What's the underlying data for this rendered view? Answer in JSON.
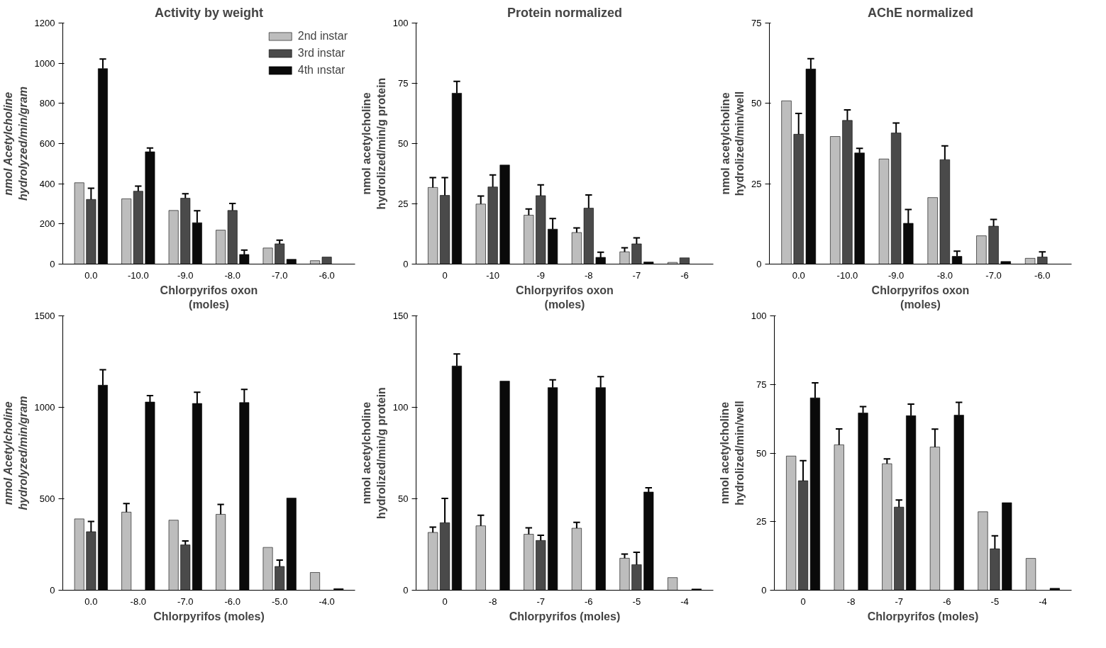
{
  "chart_data": [
    {
      "type": "bar",
      "title": "Activity by weight",
      "xlabel": "Chlorpyrifos oxon\n(moles)",
      "ylabel": "nmol Acetylcholine\nhydrolyzed/min/gram",
      "categories": [
        "0.0",
        "-10.0",
        "-9.0",
        "-8.0",
        "-7.0",
        "-6.0"
      ],
      "ylim": [
        0,
        1200
      ],
      "yticks": [
        0,
        200,
        400,
        600,
        800,
        1000,
        1200
      ],
      "legend": "top right",
      "grid": false,
      "series": [
        {
          "name": "2nd instar",
          "color": "#bdbdbd",
          "values": [
            405,
            325,
            267,
            169,
            80,
            17
          ]
        },
        {
          "name": "3rd instar",
          "color": "#4a4a4a",
          "values": [
            322,
            363,
            328,
            267,
            101,
            35
          ],
          "errors": [
            [
              322,
              378
            ],
            [
              363,
              388
            ],
            [
              328,
              350
            ],
            [
              267,
              302
            ],
            [
              101,
              119
            ],
            null
          ]
        },
        {
          "name": "4th ınstar",
          "color": "#0a0a0a",
          "values": [
            973,
            559,
            206,
            48,
            24,
            null
          ],
          "errors": [
            [
              973,
              1021
            ],
            [
              559,
              578
            ],
            [
              206,
              266
            ],
            [
              48,
              70
            ],
            null,
            null
          ]
        }
      ]
    },
    {
      "type": "bar",
      "title": "Protein normalized",
      "xlabel": "Chlorpyrifos oxon\n(moles)",
      "ylabel": "nmol acetylcholine\nhydrolized/min/g protein",
      "categories": [
        "0",
        "-10",
        "-9",
        "-8",
        "-7",
        "-6"
      ],
      "ylim": [
        0,
        100
      ],
      "yticks": [
        0,
        25,
        50,
        75,
        100
      ],
      "grid": false,
      "series": [
        {
          "color": "#bdbdbd",
          "values": [
            31.8,
            24.9,
            20.3,
            13.1,
            5.1,
            0.7
          ],
          "errors": [
            [
              31.8,
              35.9
            ],
            [
              24.9,
              28.2
            ],
            [
              20.3,
              22.9
            ],
            [
              13.1,
              15
            ],
            [
              5.1,
              6.8
            ],
            null
          ]
        },
        {
          "color": "#4a4a4a",
          "values": [
            28.5,
            32,
            28.4,
            23.2,
            8.4,
            2.6
          ],
          "errors": [
            [
              28.5,
              35.9
            ],
            [
              32,
              37
            ],
            [
              28.4,
              32.9
            ],
            [
              23.2,
              28.7
            ],
            [
              8.4,
              10.9
            ],
            null
          ]
        },
        {
          "color": "#0a0a0a",
          "values": [
            70.9,
            41.1,
            14.5,
            2.8,
            0.9,
            null
          ],
          "errors": [
            [
              70.9,
              75.8
            ],
            null,
            [
              14.5,
              18.9
            ],
            [
              2.8,
              4.9
            ],
            null,
            null
          ]
        }
      ]
    },
    {
      "type": "bar",
      "title": "AChE normalized",
      "xlabel": "Chlorpyrifos oxon\n(moles)",
      "ylabel": "nmol acetylcholine\nhydrolized/min/well",
      "categories": [
        "0.0",
        "-10.0",
        "-9.0",
        "-8.0",
        "-7.0",
        "-6.0"
      ],
      "ylim": [
        0,
        75
      ],
      "yticks": [
        0,
        25,
        50,
        75
      ],
      "grid": false,
      "series": [
        {
          "color": "#bdbdbd",
          "values": [
            50.8,
            39.7,
            32.7,
            20.7,
            8.8,
            1.8
          ]
        },
        {
          "color": "#4a4a4a",
          "values": [
            40.4,
            44.7,
            40.8,
            32.5,
            11.8,
            2.2
          ],
          "errors": [
            [
              40.4,
              46.9
            ],
            [
              44.7,
              48
            ],
            [
              40.8,
              43.9
            ],
            [
              32.5,
              36.8
            ],
            [
              11.8,
              13.9
            ],
            [
              2.2,
              3.8
            ]
          ]
        },
        {
          "color": "#0a0a0a",
          "values": [
            60.7,
            34.6,
            12.7,
            2.4,
            0.8,
            null
          ],
          "errors": [
            [
              60.7,
              63.9
            ],
            [
              34.6,
              36
            ],
            [
              12.7,
              17
            ],
            [
              2.4,
              4
            ],
            null,
            null
          ]
        }
      ]
    },
    {
      "type": "bar",
      "xlabel": "Chlorpyrifos (moles)",
      "ylabel": "nmol Acetylcholine\nhydrolyzed/min/gram",
      "categories": [
        "0.0",
        "-8.0",
        "-7.0",
        "-6.0",
        "-5.0",
        "-4.0"
      ],
      "ylim": [
        0,
        1500
      ],
      "yticks": [
        0,
        500,
        1000,
        1500
      ],
      "grid": false,
      "series": [
        {
          "color": "#bdbdbd",
          "values": [
            390,
            427,
            383,
            415,
            234,
            97
          ],
          "errors": [
            null,
            [
              427,
              474
            ],
            null,
            [
              415,
              469
            ],
            null,
            null
          ]
        },
        {
          "color": "#4a4a4a",
          "values": [
            320,
            null,
            248,
            null,
            130,
            null
          ],
          "errors": [
            [
              320,
              376
            ],
            null,
            [
              248,
              269
            ],
            null,
            [
              130,
              165
            ],
            null
          ]
        },
        {
          "color": "#0a0a0a",
          "values": [
            1121,
            1029,
            1021,
            1026,
            504,
            9
          ],
          "errors": [
            [
              1121,
              1205
            ],
            [
              1029,
              1064
            ],
            [
              1021,
              1082
            ],
            [
              1026,
              1098
            ],
            null,
            null
          ]
        }
      ]
    },
    {
      "type": "bar",
      "xlabel": "Chlorpyrifos (moles)",
      "ylabel": "nmol acetylcholine\nhydrolized/min/g protein",
      "categories": [
        "0",
        "-8",
        "-7",
        "-6",
        "-5",
        "-4"
      ],
      "ylim": [
        0,
        150
      ],
      "yticks": [
        0,
        50,
        100,
        150
      ],
      "grid": false,
      "series": [
        {
          "color": "#bdbdbd",
          "values": [
            31.6,
            35.2,
            30.6,
            33.9,
            17.5,
            6.9
          ],
          "errors": [
            [
              31.6,
              34.5
            ],
            [
              35.2,
              41
            ],
            [
              30.6,
              34.1
            ],
            [
              33.9,
              37.1
            ],
            [
              17.5,
              19.8
            ],
            null
          ]
        },
        {
          "color": "#4a4a4a",
          "values": [
            36.9,
            null,
            27.2,
            null,
            14,
            null
          ],
          "errors": [
            [
              36.9,
              50.2
            ],
            null,
            [
              27.2,
              30
            ],
            null,
            [
              14,
              20.7
            ],
            null
          ]
        },
        {
          "color": "#0a0a0a",
          "values": [
            122.6,
            114.3,
            110.8,
            110.8,
            53.7,
            0.7
          ],
          "errors": [
            [
              122.6,
              129.2
            ],
            null,
            [
              110.8,
              115
            ],
            [
              110.8,
              116.8
            ],
            [
              53.7,
              56
            ],
            null
          ]
        }
      ]
    },
    {
      "type": "bar",
      "xlabel": "Chlorpyrifos (moles)",
      "ylabel": "nmol acetylcholine\nhydrolized/min/well",
      "categories": [
        "0",
        "-8",
        "-7",
        "-6",
        "-5",
        "-4"
      ],
      "ylim": [
        0,
        100
      ],
      "yticks": [
        0,
        25,
        50,
        75,
        100
      ],
      "grid": false,
      "series": [
        {
          "color": "#bdbdbd",
          "values": [
            48.9,
            53,
            46.1,
            52.2,
            28.6,
            11.6
          ],
          "errors": [
            null,
            [
              53,
              58.8
            ],
            [
              46.1,
              47.9
            ],
            [
              52.2,
              58.7
            ],
            null,
            null
          ]
        },
        {
          "color": "#4a4a4a",
          "values": [
            39.9,
            null,
            30.3,
            null,
            15.1,
            null
          ],
          "errors": [
            [
              39.9,
              47.2
            ],
            null,
            [
              30.3,
              32.9
            ],
            null,
            [
              15.1,
              19.8
            ],
            null
          ]
        },
        {
          "color": "#0a0a0a",
          "values": [
            70.1,
            64.6,
            63.6,
            63.8,
            31.9,
            0.7
          ],
          "errors": [
            [
              70.1,
              75.6
            ],
            [
              64.6,
              66.9
            ],
            [
              63.6,
              67.8
            ],
            [
              63.8,
              68.5
            ],
            null,
            null
          ]
        }
      ]
    }
  ]
}
